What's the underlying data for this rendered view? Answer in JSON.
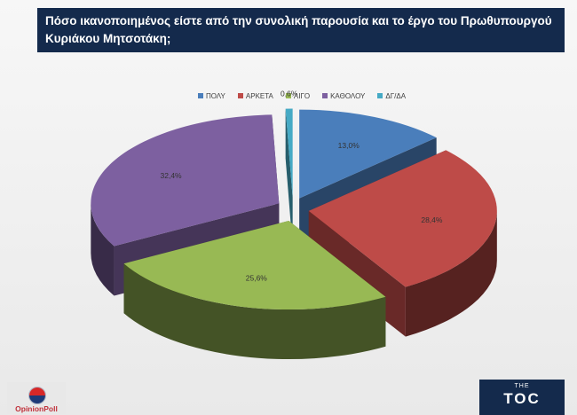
{
  "header": {
    "title_line1": "Πόσο ικανοποιημένος είστε από την συνολική παρουσία και το έργο του Πρωθυπουργού",
    "title_line2": "Κυριάκου Μητσοτάκη;"
  },
  "logos": {
    "left": "OpinionPoll",
    "right_small": "THE",
    "right_main": "TOC"
  },
  "chart_data": {
    "type": "pie",
    "style": "3d-exploded",
    "legend_position": "top",
    "categories": [
      "ΠΟΛΥ",
      "ΑΡΚΕΤΑ",
      "ΛΙΓΟ",
      "ΚΑΘΟΛΟΥ",
      "ΔΓ/ΔΑ"
    ],
    "values": [
      13.0,
      28.4,
      25.6,
      32.4,
      0.6
    ],
    "labels": [
      "13,0%",
      "28,4%",
      "25,6%",
      "32,4%",
      "0,6%"
    ],
    "colors": [
      "#4a7ebb",
      "#be4b48",
      "#98b954",
      "#7d60a0",
      "#46aac5"
    ]
  }
}
